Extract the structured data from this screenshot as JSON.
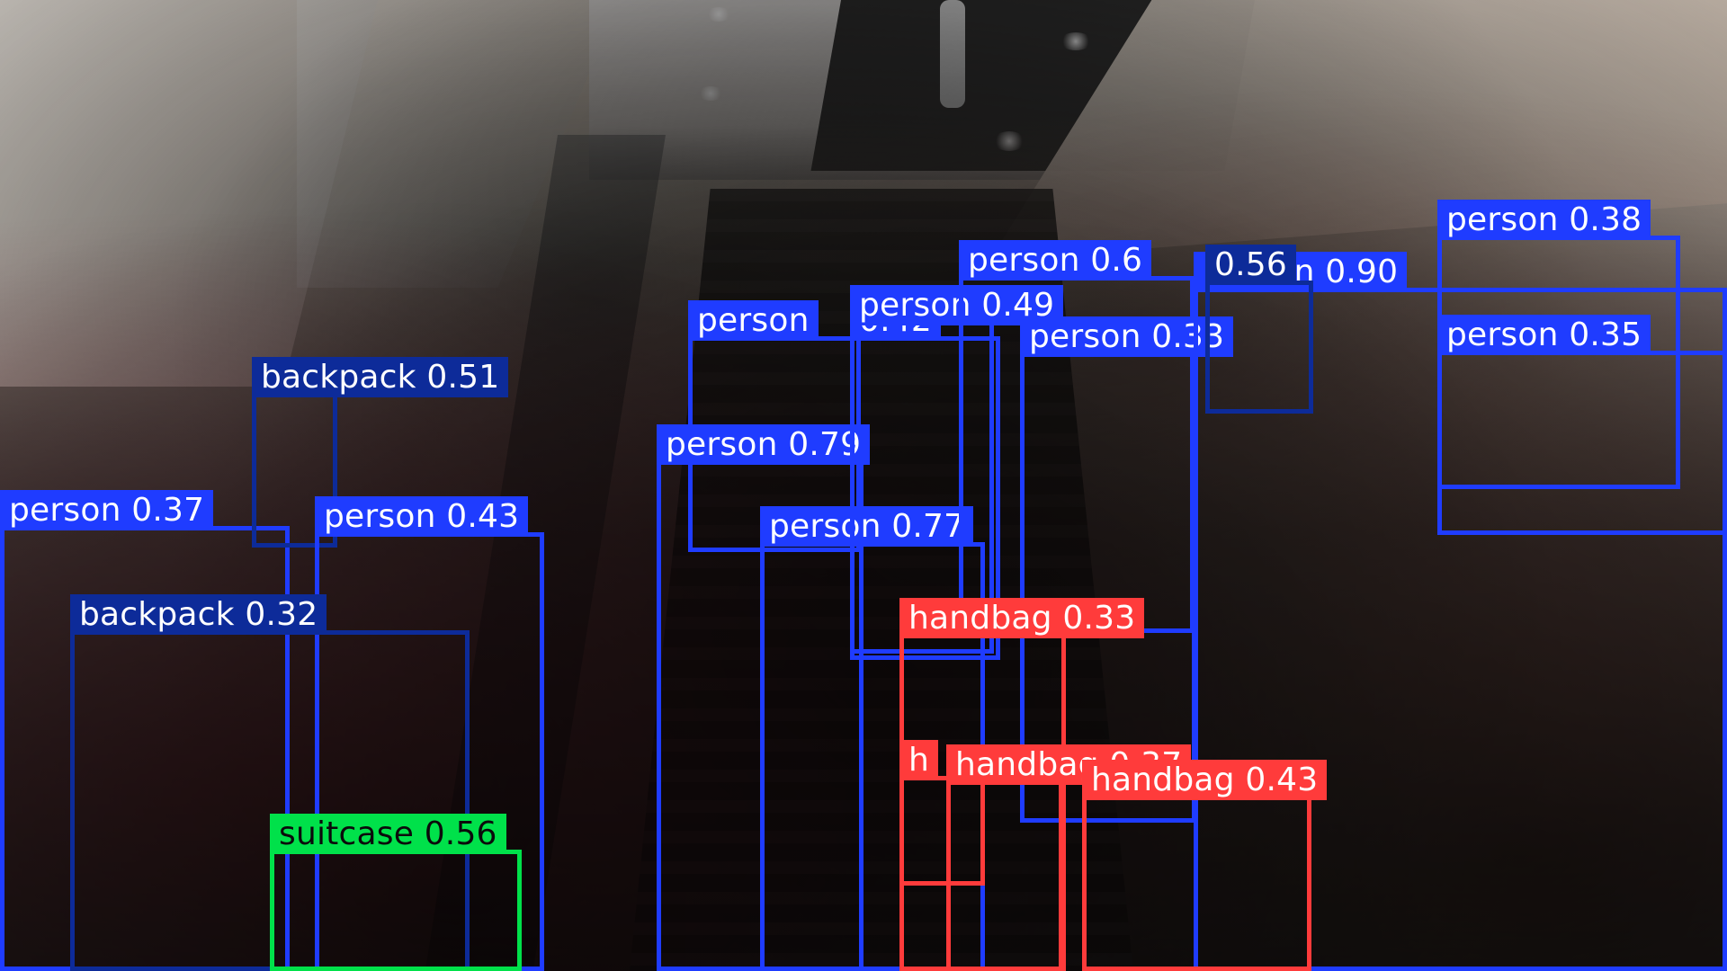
{
  "theme": {
    "person_color": "#1f3cff",
    "backpack_color": "#0d2b99",
    "handbag_color": "#ff3b3b",
    "suitcase_color": "#00e14a"
  },
  "detections": [
    {
      "label": "person 0.37",
      "color": "#1f3cff"
    },
    {
      "label": "backpack 0.51",
      "color": "#0d2b99"
    },
    {
      "label": "person 0.43",
      "color": "#1f3cff"
    },
    {
      "label": "backpack 0.32",
      "color": "#0d2b99"
    },
    {
      "label": "suitcase 0.56",
      "color": "#00e14a"
    },
    {
      "label": "person",
      "color": "#1f3cff"
    },
    {
      "label": "0.42",
      "color": "#1f3cff"
    },
    {
      "label": "person 0.79",
      "color": "#1f3cff"
    },
    {
      "label": "person 0.77",
      "color": "#1f3cff"
    },
    {
      "label": "person 0.49",
      "color": "#1f3cff"
    },
    {
      "label": "person 0.6",
      "color": "#1f3cff"
    },
    {
      "label": "person 0.33",
      "color": "#1f3cff"
    },
    {
      "label": "person 0.90",
      "color": "#1f3cff"
    },
    {
      "label": "0.56",
      "color": "#1f3cff"
    },
    {
      "label": "person 0.38",
      "color": "#1f3cff"
    },
    {
      "label": "person 0.35",
      "color": "#1f3cff"
    },
    {
      "label": "handbag 0.33",
      "color": "#ff3b3b"
    },
    {
      "label": "handbag 0.37",
      "color": "#ff3b3b"
    },
    {
      "label": "handbag 0.43",
      "color": "#ff3b3b"
    },
    {
      "label": "h",
      "color": "#ff3b3b"
    }
  ]
}
